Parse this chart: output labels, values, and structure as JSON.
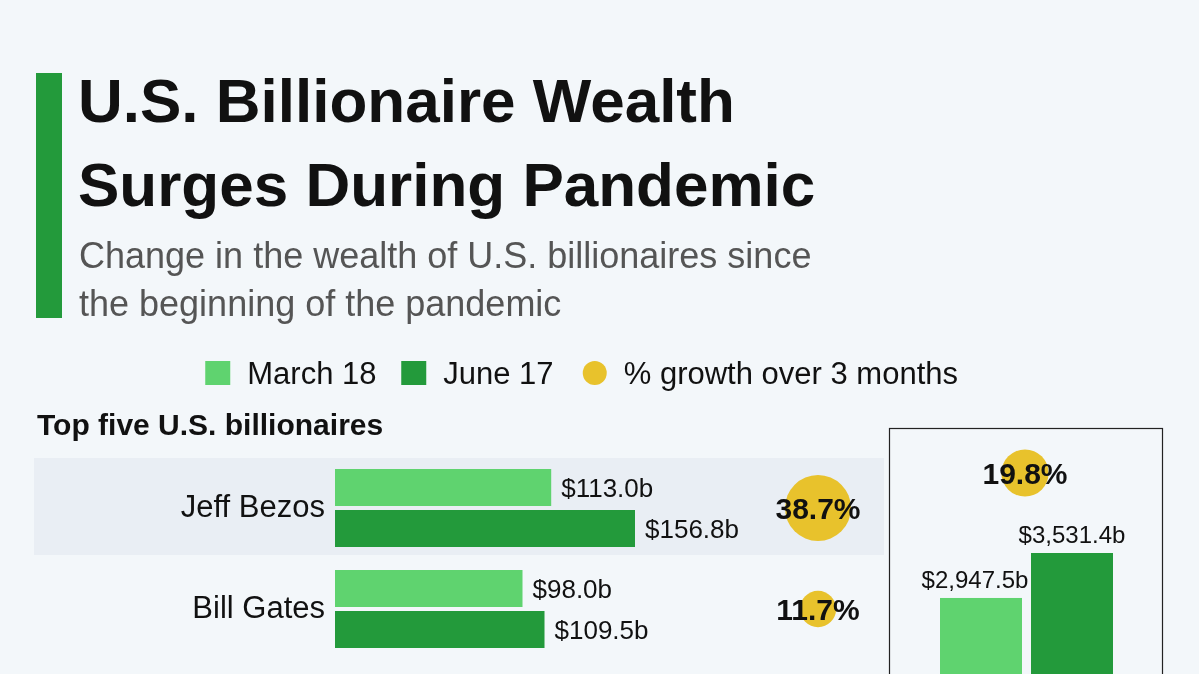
{
  "chart_data": [
    {
      "type": "bar",
      "orientation": "horizontal",
      "title": "U.S. Billionaire Wealth Surges During Pandemic",
      "subtitle": "Change in the wealth of U.S. billionaires since the beginning of the pandemic",
      "legend": "top",
      "annotations": [
        "Top five U.S. billionaires",
        "% growth over 3 months",
        "38.7%",
        "11.7%"
      ],
      "categories": [
        "Jeff Bezos",
        "Bill Gates"
      ],
      "bands": [
        {
          "axis": "y",
          "from": "Jeff Bezos",
          "to": "Jeff Bezos",
          "color": "#e9eef4"
        }
      ],
      "series": [
        {
          "name": "March 18",
          "color": "#5fd36f",
          "values": [
            113.0,
            98.0
          ],
          "value_labels": [
            "$113.0b",
            "$98.0b"
          ]
        },
        {
          "name": "June 17",
          "color": "#239a3b",
          "values": [
            156.8,
            109.5
          ],
          "value_labels": [
            "$156.8b",
            "$109.5b"
          ]
        }
      ]
    },
    {
      "type": "bar",
      "categories": [
        null
      ],
      "annotations": [
        "19.8%"
      ],
      "series": [
        {
          "color": "#5fd36f",
          "values": [
            2947.5
          ],
          "value_labels": [
            "$2,947.5b"
          ]
        },
        {
          "color": "#239a3b",
          "values": [
            3531.4
          ],
          "value_labels": [
            "$3,531.4b"
          ]
        }
      ]
    }
  ]
}
